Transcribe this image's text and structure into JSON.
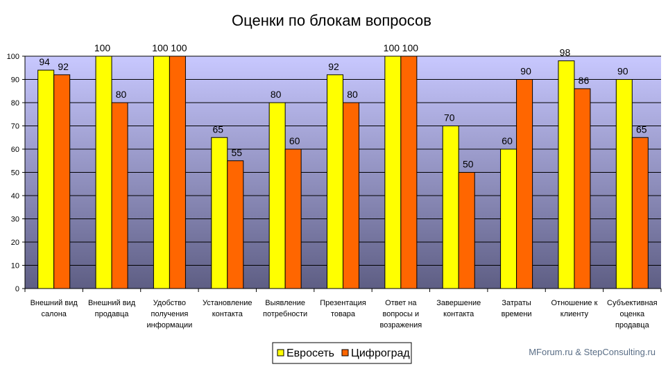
{
  "chart_data": {
    "type": "bar",
    "title": "Оценки по блокам вопросов",
    "xlabel": "",
    "ylabel": "",
    "ylim": [
      0,
      100
    ],
    "yticks": [
      0,
      10,
      20,
      30,
      40,
      50,
      60,
      70,
      80,
      90,
      100
    ],
    "grid": true,
    "legend_position": "bottom",
    "categories": [
      [
        "Внешний вид",
        "салона"
      ],
      [
        "Внешний вид",
        "продавца"
      ],
      [
        "Удобство",
        "получения",
        "информации"
      ],
      [
        "Установление",
        "контакта"
      ],
      [
        "Выявление",
        "потребности"
      ],
      [
        "Презентация",
        "товара"
      ],
      [
        "Ответ на",
        "вопросы и",
        "возражения"
      ],
      [
        "Завершение",
        "контакта"
      ],
      [
        "Затраты",
        "времени"
      ],
      [
        "Отношение к",
        "клиенту"
      ],
      [
        "Субъективная",
        "оценка",
        "продавца"
      ]
    ],
    "series": [
      {
        "name": "Евросеть",
        "color": "#ffff00",
        "values": [
          94,
          100,
          100,
          65,
          80,
          92,
          100,
          70,
          60,
          98,
          90
        ]
      },
      {
        "name": "Цифроград",
        "color": "#ff6600",
        "values": [
          92,
          80,
          100,
          55,
          60,
          80,
          100,
          50,
          90,
          86,
          65
        ]
      }
    ]
  },
  "credit": "MForum.ru & StepConsulting.ru",
  "colors": {
    "plot_top": "#c8c8ff",
    "plot_bottom": "#5e5e84",
    "bar_stroke": "#000000"
  }
}
